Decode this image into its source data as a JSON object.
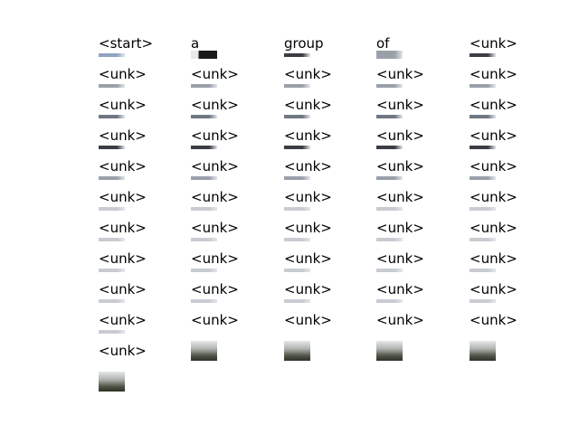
{
  "columns": [
    {
      "tokens": [
        "<start>",
        "<unk>",
        "<unk>",
        "<unk>",
        "<unk>",
        "<unk>",
        "<unk>",
        "<unk>",
        "<unk>",
        "<unk>",
        "<unk>"
      ],
      "thumbs": [
        "sky",
        "gray",
        "mid",
        "dark",
        "gray",
        "light",
        "light",
        "light",
        "light",
        "light",
        "photo"
      ]
    },
    {
      "tokens": [
        "a",
        "<unk>",
        "<unk>",
        "<unk>",
        "<unk>",
        "<unk>",
        "<unk>",
        "<unk>",
        "<unk>",
        "<unk>"
      ],
      "thumbs": [
        "black",
        "gray",
        "mid",
        "dark",
        "gray",
        "light",
        "light",
        "light",
        "light",
        "photo"
      ]
    },
    {
      "tokens": [
        "group",
        "<unk>",
        "<unk>",
        "<unk>",
        "<unk>",
        "<unk>",
        "<unk>",
        "<unk>",
        "<unk>",
        "<unk>"
      ],
      "thumbs": [
        "dark",
        "gray",
        "mid",
        "dark",
        "gray",
        "light",
        "light",
        "light",
        "light",
        "photo"
      ]
    },
    {
      "tokens": [
        "of",
        "<unk>",
        "<unk>",
        "<unk>",
        "<unk>",
        "<unk>",
        "<unk>",
        "<unk>",
        "<unk>",
        "<unk>"
      ],
      "thumbs": [
        "gray",
        "gray",
        "mid",
        "dark",
        "gray",
        "light",
        "light",
        "light",
        "light",
        "photo"
      ]
    },
    {
      "tokens": [
        "<unk>",
        "<unk>",
        "<unk>",
        "<unk>",
        "<unk>",
        "<unk>",
        "<unk>",
        "<unk>",
        "<unk>",
        "<unk>"
      ],
      "thumbs": [
        "dark",
        "gray",
        "mid",
        "dark",
        "gray",
        "light",
        "light",
        "light",
        "light",
        "photo"
      ]
    }
  ],
  "palette": {
    "sky": "#8fa3c2",
    "black": "#202020",
    "dark": "#3a3d44",
    "mid": "#707784",
    "gray": "#9aa0aa",
    "light": "#c8ccd2",
    "photo": "#6b6f66"
  }
}
